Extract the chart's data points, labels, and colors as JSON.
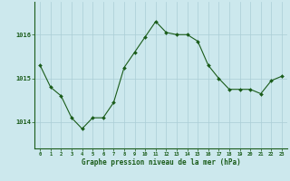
{
  "x": [
    0,
    1,
    2,
    3,
    4,
    5,
    6,
    7,
    8,
    9,
    10,
    11,
    12,
    13,
    14,
    15,
    16,
    17,
    18,
    19,
    20,
    21,
    22,
    23
  ],
  "y": [
    1015.3,
    1014.8,
    1014.6,
    1014.1,
    1013.85,
    1014.1,
    1014.1,
    1014.45,
    1015.25,
    1015.6,
    1015.95,
    1016.3,
    1016.05,
    1016.0,
    1016.0,
    1015.85,
    1015.3,
    1015.0,
    1014.75,
    1014.75,
    1014.75,
    1014.65,
    1014.95,
    1015.05
  ],
  "bg_color": "#cce8ed",
  "line_color": "#1a5c1a",
  "marker_color": "#1a5c1a",
  "grid_color": "#aacdd6",
  "tick_label_color": "#1a5c1a",
  "xlabel": "Graphe pression niveau de la mer (hPa)",
  "xlabel_color": "#1a5c1a",
  "yticks": [
    1014,
    1015,
    1016
  ],
  "ylim": [
    1013.4,
    1016.75
  ],
  "xlim": [
    -0.5,
    23.5
  ]
}
